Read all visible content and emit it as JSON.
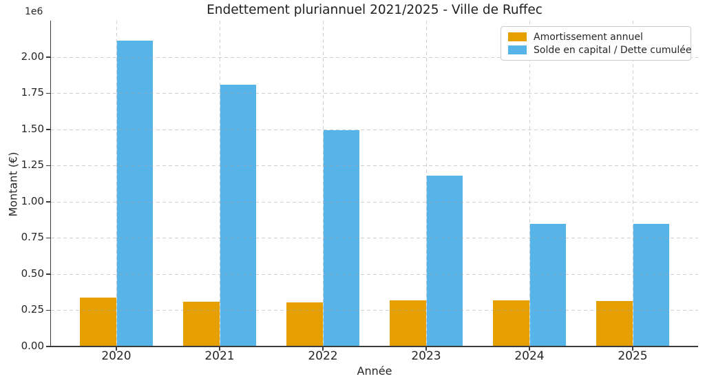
{
  "chart_data": {
    "type": "bar",
    "title": "Endettement pluriannuel 2021/2025 - Ville de Ruffec",
    "xlabel": "Année",
    "ylabel": "Montant (€)",
    "y_offset_label": "1e6",
    "categories": [
      "2020",
      "2021",
      "2022",
      "2023",
      "2024",
      "2025"
    ],
    "series": [
      {
        "name": "Amortissement annuel",
        "color": "#E69F00",
        "values": [
          338000,
          308000,
          305000,
          320000,
          319000,
          314000
        ]
      },
      {
        "name": "Solde en capital / Dette cumulée",
        "color": "#56B4E9",
        "values": [
          2113000,
          1808000,
          1495000,
          1183000,
          849000,
          849000
        ]
      }
    ],
    "ylim": [
      0,
      2252000
    ],
    "yticks": [
      0,
      250000,
      500000,
      750000,
      1000000,
      1250000,
      1500000,
      1750000,
      2000000
    ],
    "ytick_labels": [
      "0.00",
      "0.25",
      "0.50",
      "0.75",
      "1.00",
      "1.25",
      "1.50",
      "1.75",
      "2.00"
    ],
    "grid": true,
    "grid_style": "dashed",
    "legend_position": "upper right"
  }
}
